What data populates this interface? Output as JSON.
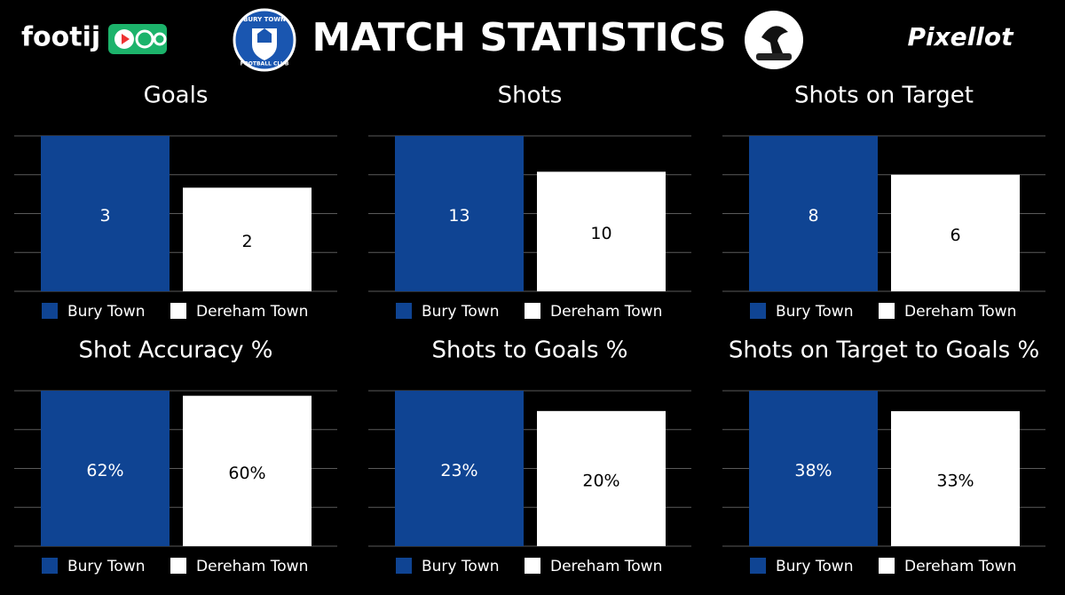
{
  "header": {
    "brand": "footij",
    "club_top": "BURY TOWN",
    "club_bottom": "FOOTBALL CLUB",
    "title": "MATCH STATISTICS",
    "partner": "Pixellot"
  },
  "chart_data": [
    {
      "type": "bar",
      "title": "Goals",
      "categories": [
        null
      ],
      "series": [
        {
          "name": "Bury Town",
          "color": "#0f4493",
          "values": [
            3
          ]
        },
        {
          "name": "Dereham Town",
          "color": "#ffffff",
          "values": [
            2
          ]
        }
      ],
      "ylim": [
        0,
        3
      ],
      "yticks": [
        0,
        0.75,
        1.5,
        2.25,
        3
      ],
      "grid": true
    },
    {
      "type": "bar",
      "title": "Shots",
      "categories": [
        null
      ],
      "series": [
        {
          "name": "Bury Town",
          "color": "#0f4493",
          "values": [
            13
          ]
        },
        {
          "name": "Dereham Town",
          "color": "#ffffff",
          "values": [
            10
          ]
        }
      ],
      "ylim": [
        0,
        13
      ],
      "yticks": [
        0,
        3.25,
        6.5,
        9.75,
        13
      ],
      "grid": true
    },
    {
      "type": "bar",
      "title": "Shots on Target",
      "categories": [
        null
      ],
      "series": [
        {
          "name": "Bury Town",
          "color": "#0f4493",
          "values": [
            8
          ]
        },
        {
          "name": "Dereham Town",
          "color": "#ffffff",
          "values": [
            6
          ]
        }
      ],
      "ylim": [
        0,
        8
      ],
      "yticks": [
        0,
        2,
        4,
        6,
        8
      ],
      "grid": true
    },
    {
      "type": "bar",
      "title": "Shot Accuracy %",
      "categories": [
        null
      ],
      "series": [
        {
          "name": "Bury Town",
          "color": "#0f4493",
          "values": [
            62
          ],
          "value_labels": [
            "62%"
          ]
        },
        {
          "name": "Dereham Town",
          "color": "#ffffff",
          "values": [
            60
          ],
          "value_labels": [
            "60%"
          ]
        }
      ],
      "ylim": [
        0,
        62
      ],
      "yticks": [
        0,
        15.5,
        31,
        46.5,
        62
      ],
      "grid": true
    },
    {
      "type": "bar",
      "title": "Shots to Goals %",
      "categories": [
        null
      ],
      "series": [
        {
          "name": "Bury Town",
          "color": "#0f4493",
          "values": [
            23
          ],
          "value_labels": [
            "23%"
          ]
        },
        {
          "name": "Dereham Town",
          "color": "#ffffff",
          "values": [
            20
          ],
          "value_labels": [
            "20%"
          ]
        }
      ],
      "ylim": [
        0,
        23
      ],
      "yticks": [
        0,
        5.75,
        11.5,
        17.25,
        23
      ],
      "grid": true
    },
    {
      "type": "bar",
      "title": "Shots on Target to Goals %",
      "categories": [
        null
      ],
      "series": [
        {
          "name": "Bury Town",
          "color": "#0f4493",
          "values": [
            38
          ],
          "value_labels": [
            "38%"
          ]
        },
        {
          "name": "Dereham Town",
          "color": "#ffffff",
          "values": [
            33
          ],
          "value_labels": [
            "33%"
          ]
        }
      ],
      "ylim": [
        0,
        38
      ],
      "yticks": [
        0,
        9.5,
        19,
        28.5,
        38
      ],
      "grid": true
    }
  ]
}
